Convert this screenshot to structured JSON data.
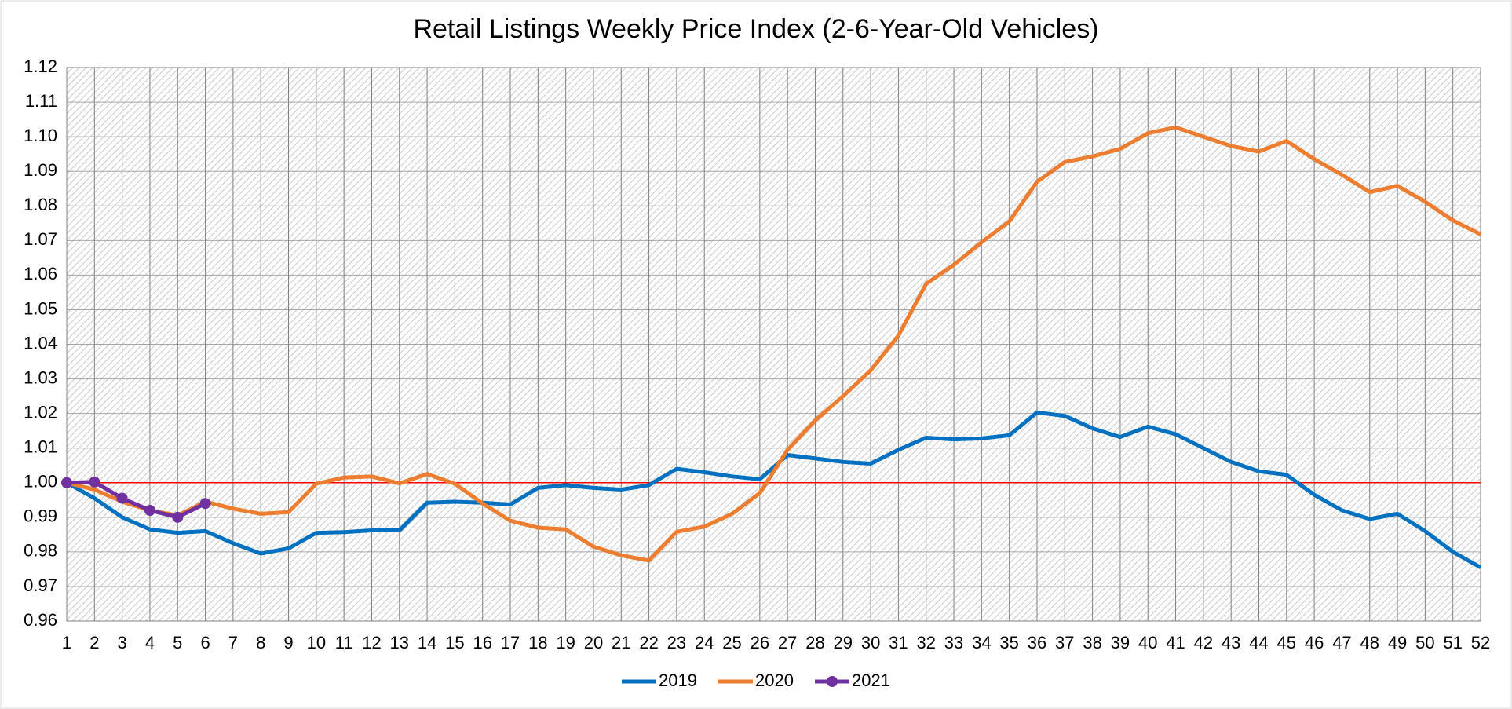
{
  "chart_data": {
    "type": "line",
    "title": "Retail Listings Weekly Price Index (2-6-Year-Old Vehicles)",
    "x": [
      1,
      2,
      3,
      4,
      5,
      6,
      7,
      8,
      9,
      10,
      11,
      12,
      13,
      14,
      15,
      16,
      17,
      18,
      19,
      20,
      21,
      22,
      23,
      24,
      25,
      26,
      27,
      28,
      29,
      30,
      31,
      32,
      33,
      34,
      35,
      36,
      37,
      38,
      39,
      40,
      41,
      42,
      43,
      44,
      45,
      46,
      47,
      48,
      49,
      50,
      51,
      52
    ],
    "xlim": [
      1,
      52
    ],
    "xticks": [
      1,
      2,
      3,
      4,
      5,
      6,
      7,
      8,
      9,
      10,
      11,
      12,
      13,
      14,
      15,
      16,
      17,
      18,
      19,
      20,
      21,
      22,
      23,
      24,
      25,
      26,
      27,
      28,
      29,
      30,
      31,
      32,
      33,
      34,
      35,
      36,
      37,
      38,
      39,
      40,
      41,
      42,
      43,
      44,
      45,
      46,
      47,
      48,
      49,
      50,
      51,
      52
    ],
    "ylim": [
      0.96,
      1.12
    ],
    "yticks": [
      0.96,
      0.97,
      0.98,
      0.99,
      {
        "value": 1,
        "label": "1.00"
      },
      1.01,
      1.02,
      1.03,
      1.04,
      1.05,
      1.06,
      1.07,
      1.08,
      1.09,
      {
        "value": 1.1,
        "label": "1.10"
      },
      1.11,
      1.12
    ],
    "grid": true,
    "reference_line": {
      "value": 1,
      "color": "#ff0000"
    },
    "legend": "bottom",
    "series": [
      {
        "name": "2019",
        "color": "#0070c0",
        "values": [
          1.0,
          0.9955,
          0.99,
          0.9865,
          0.9855,
          0.986,
          0.9825,
          0.9795,
          0.981,
          0.9855,
          0.9857,
          0.9862,
          0.9862,
          0.9942,
          0.9945,
          0.9942,
          0.9937,
          0.9985,
          0.9993,
          0.9985,
          0.998,
          0.9993,
          1.004,
          1.003,
          1.0018,
          1.001,
          1.008,
          1.007,
          1.006,
          1.0055,
          1.0095,
          1.013,
          1.0125,
          1.0128,
          1.0137,
          1.0203,
          1.0193,
          1.0157,
          1.0132,
          1.0162,
          1.014,
          1.01,
          1.006,
          1.0033,
          1.0023,
          0.9965,
          0.992,
          0.9895,
          0.991,
          0.986,
          0.98,
          0.9755
        ]
      },
      {
        "name": "2020",
        "color": "#ed7d31",
        "values": [
          1.0,
          0.998,
          0.9945,
          0.992,
          0.9905,
          0.9945,
          0.9925,
          0.991,
          0.9915,
          0.9997,
          1.0015,
          1.0018,
          0.9998,
          1.0025,
          0.9997,
          0.994,
          0.989,
          0.987,
          0.9865,
          0.9815,
          0.979,
          0.9775,
          0.9858,
          0.9873,
          0.991,
          0.997,
          1.0095,
          1.018,
          1.025,
          1.0325,
          1.0425,
          1.0575,
          1.063,
          1.0695,
          1.0755,
          1.087,
          1.0927,
          1.0943,
          1.0965,
          1.101,
          1.1027,
          1.1,
          1.0973,
          1.0957,
          1.0988,
          1.0935,
          1.089,
          1.084,
          1.0858,
          1.0812,
          1.0758,
          1.0718
        ]
      },
      {
        "name": "2021",
        "color": "#7030a0",
        "markers": true,
        "values": [
          1.0,
          1.0002,
          0.9955,
          0.992,
          0.99,
          0.994,
          null,
          null,
          null,
          null,
          null,
          null,
          null,
          null,
          null,
          null,
          null,
          null,
          null,
          null,
          null,
          null,
          null,
          null,
          null,
          null,
          null,
          null,
          null,
          null,
          null,
          null,
          null,
          null,
          null,
          null,
          null,
          null,
          null,
          null,
          null,
          null,
          null,
          null,
          null,
          null,
          null,
          null,
          null,
          null,
          null,
          null
        ]
      }
    ]
  }
}
